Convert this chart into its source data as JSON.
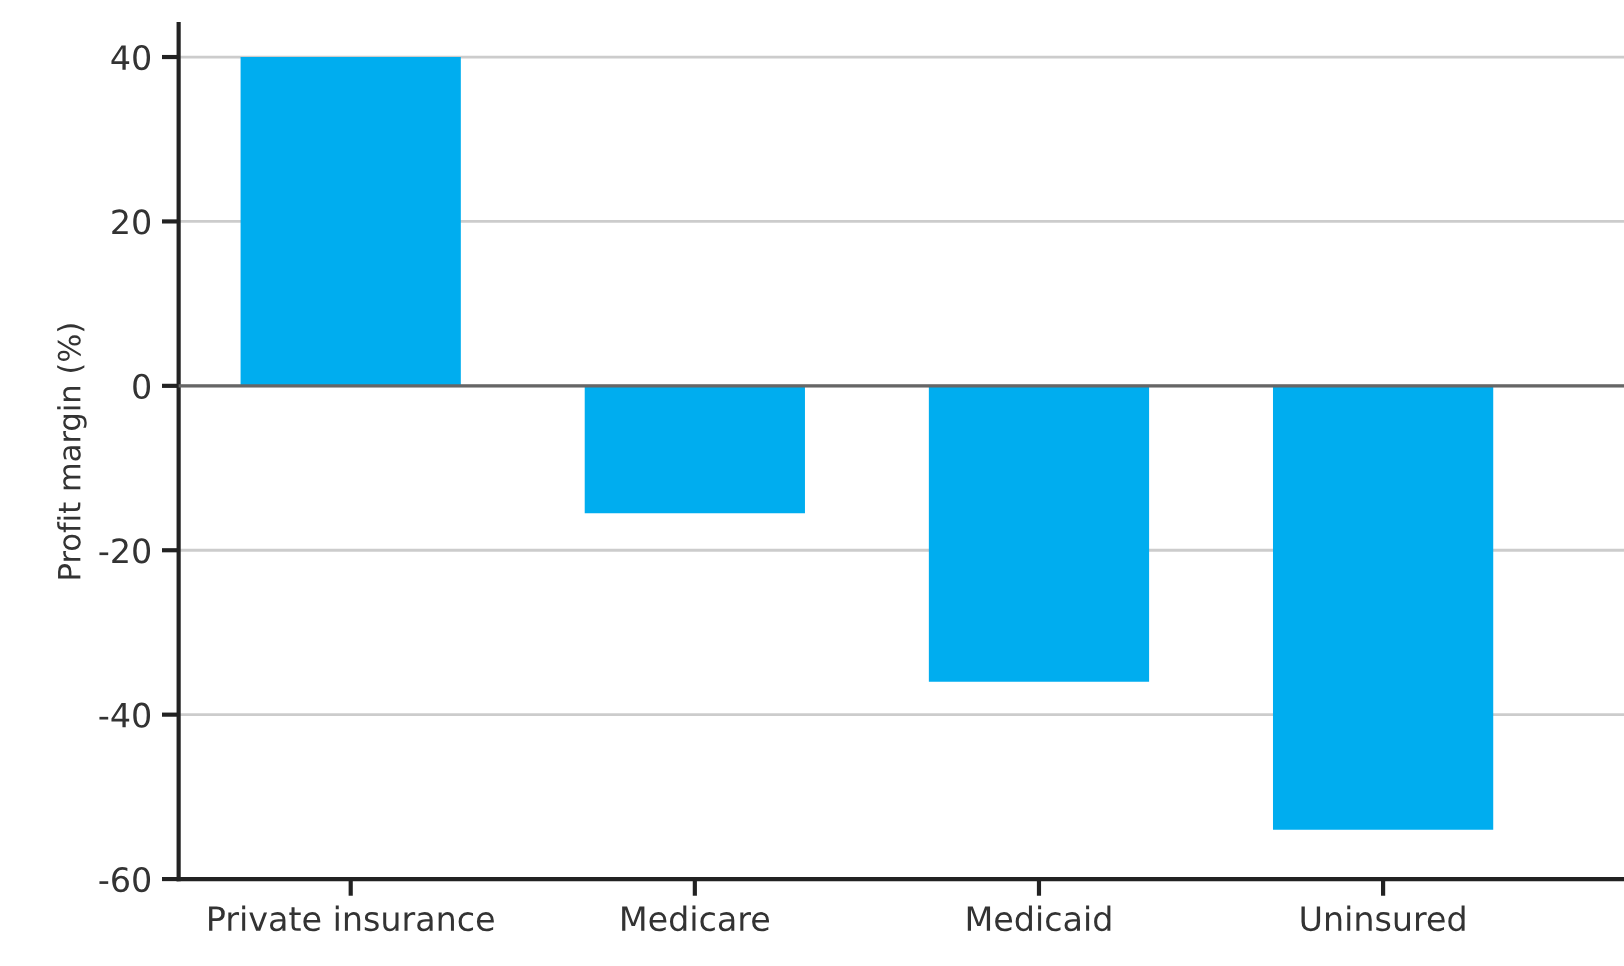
{
  "chart_data": {
    "type": "bar",
    "ylabel": "Profit margin (%)",
    "categories": [
      "Private insurance",
      "Medicare",
      "Medicaid",
      "Uninsured"
    ],
    "values": [
      40,
      -15.5,
      -36,
      -54
    ],
    "color": "#00adef",
    "ylim": [
      -60,
      44
    ],
    "yticks": [
      -60,
      -40,
      -20,
      0,
      20,
      40
    ],
    "grid": "y",
    "ref_lines": [
      {
        "axis": "y",
        "value": 0,
        "color": "#666666"
      }
    ]
  }
}
